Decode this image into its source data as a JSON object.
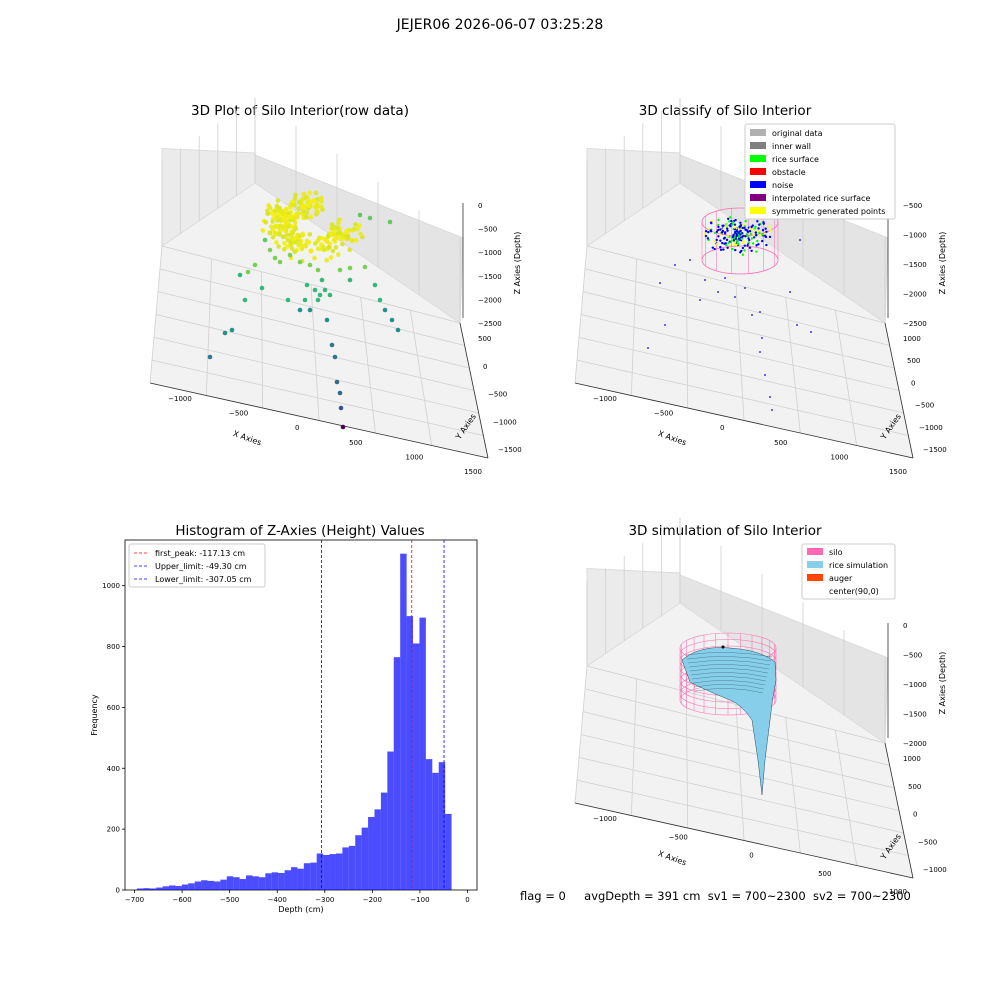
{
  "suptitle": "JEJER06 2026-06-07 03:25:28",
  "footer": {
    "flag": "flag = 0",
    "avg_depth": "avgDepth = 391 cm",
    "sv1": "sv1 = 700~2300",
    "sv2": "sv2 = 700~2300"
  },
  "colors": {
    "histogram_bar": "#0000ff",
    "first_peak": "#ff0000",
    "limits": "#0000ff",
    "silo": "#ff69b4",
    "rice_simulation": "#87ceeb",
    "auger": "#ff4500",
    "inner_wall": "#808080",
    "rice_surface": "#00ff00",
    "noise": "#0000ff",
    "interpolated": "#800080",
    "symmetric": "#ffff00"
  },
  "chart_data": [
    {
      "type": "scatter",
      "title": "3D Plot of Silo Interior(row data)",
      "xlabel": "X Axies",
      "ylabel": "Y Axies",
      "zlabel": "Z Axies (Depth)",
      "x_ticks": [
        "−1000",
        "−500",
        "0",
        "500",
        "1000",
        "1500"
      ],
      "y_ticks": [
        "500",
        "0",
        "−500",
        "−1000",
        "−1500"
      ],
      "z_ticks": [
        "0",
        "−500",
        "−1000",
        "−1500",
        "−2000",
        "−2500"
      ]
    },
    {
      "type": "scatter",
      "title": "3D classify of Silo Interior",
      "xlabel": "X Axies",
      "ylabel": "Y Axies",
      "zlabel": "Z Axies (Depth)",
      "x_ticks": [
        "−1000",
        "−500",
        "0",
        "500",
        "1000",
        "1500"
      ],
      "y_ticks": [
        "1000",
        "500",
        "0",
        "−500",
        "−1000",
        "−1500"
      ],
      "z_ticks": [
        "−500",
        "−1000",
        "−1500",
        "−2000",
        "−2500"
      ],
      "legend": [
        {
          "label": "original data",
          "color": "#b0b0b0"
        },
        {
          "label": "inner wall",
          "color": "#808080"
        },
        {
          "label": "rice surface",
          "color": "#00ff00"
        },
        {
          "label": "obstacle",
          "color": "#ff0000"
        },
        {
          "label": "noise",
          "color": "#0000ff"
        },
        {
          "label": "interpolated rice surface",
          "color": "#800080"
        },
        {
          "label": "symmetric generated points",
          "color": "#ffff00"
        }
      ],
      "legend_position": "upper-right"
    },
    {
      "type": "bar",
      "title": "Histogram of Z-Axies (Height) Values",
      "xlabel": "Depth (cm)",
      "ylabel": "Frequency",
      "xlim": [
        -720,
        20
      ],
      "ylim": [
        0,
        1150
      ],
      "x_ticks": [
        "−700",
        "−600",
        "−500",
        "−400",
        "−300",
        "−200",
        "−100",
        "0"
      ],
      "x_tick_values": [
        -700,
        -600,
        -500,
        -400,
        -300,
        -200,
        -100,
        0
      ],
      "y_ticks": [
        "0",
        "200",
        "400",
        "600",
        "800",
        "1000"
      ],
      "y_tick_values": [
        0,
        200,
        400,
        600,
        800,
        1000
      ],
      "bin_width": 13.5,
      "bin_start": -695,
      "values": [
        5,
        6,
        5,
        8,
        12,
        15,
        13,
        18,
        22,
        28,
        32,
        30,
        28,
        34,
        45,
        42,
        36,
        48,
        45,
        42,
        55,
        58,
        56,
        65,
        75,
        70,
        88,
        90,
        120,
        115,
        118,
        120,
        140,
        145,
        180,
        205,
        240,
        265,
        320,
        455,
        765,
        1105,
        900,
        810,
        895,
        430,
        385,
        420,
        250
      ],
      "vlines": [
        {
          "label": "first_peak: -117.13 cm",
          "x": -117.13,
          "color": "#ff0000"
        },
        {
          "label": "Upper_limit: -49.30 cm",
          "x": -49.3,
          "color": "#0000ff"
        },
        {
          "label": "Lower_limit: -307.05 cm",
          "x": -307.05,
          "color": "#0000ff"
        }
      ],
      "legend_position": "upper-left"
    },
    {
      "type": "surface",
      "title": "3D simulation of Silo Interior",
      "xlabel": "X Axies",
      "ylabel": "Y Axies",
      "zlabel": "Z Axies (Depth)",
      "x_ticks": [
        "−1000",
        "−500",
        "0",
        "500",
        "1000"
      ],
      "y_ticks": [
        "1000",
        "500",
        "0",
        "−500",
        "−1000"
      ],
      "z_ticks": [
        "0",
        "−500",
        "−1000",
        "−1500",
        "−2000"
      ],
      "legend": [
        {
          "label": "silo",
          "color": "#ff69b4"
        },
        {
          "label": "rice simulation",
          "color": "#87ceeb"
        },
        {
          "label": "auger",
          "color": "#ff4500"
        },
        {
          "label": "center(90,0)",
          "color": ""
        }
      ],
      "legend_position": "upper-right"
    }
  ]
}
